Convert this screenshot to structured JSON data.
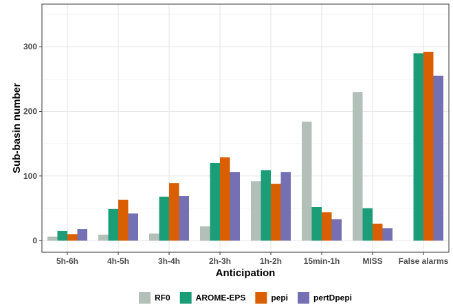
{
  "chart_data": {
    "type": "bar",
    "title": "",
    "xlabel": "Anticipation",
    "ylabel": "Sub-basin number",
    "categories": [
      "5h-6h",
      "4h-5h",
      "3h-4h",
      "2h-3h",
      "1h-2h",
      "15min-1h",
      "MISS",
      "False alarms"
    ],
    "series": [
      {
        "name": "RF0",
        "color": "#b3bfb9",
        "values": [
          6,
          9,
          11,
          22,
          92,
          184,
          230,
          0
        ]
      },
      {
        "name": "AROME-EPS",
        "color": "#1b9e77",
        "values": [
          15,
          49,
          68,
          120,
          109,
          52,
          50,
          290
        ]
      },
      {
        "name": "pepi",
        "color": "#d95f02",
        "values": [
          10,
          63,
          89,
          129,
          88,
          44,
          26,
          292
        ]
      },
      {
        "name": "pertDpepi",
        "color": "#7570b3",
        "values": [
          18,
          42,
          69,
          106,
          106,
          33,
          19,
          255
        ]
      }
    ],
    "ylim": [
      -18,
      366
    ],
    "yticks": [
      0,
      100,
      200,
      300
    ],
    "grid": true,
    "legend_position": "bottom"
  }
}
